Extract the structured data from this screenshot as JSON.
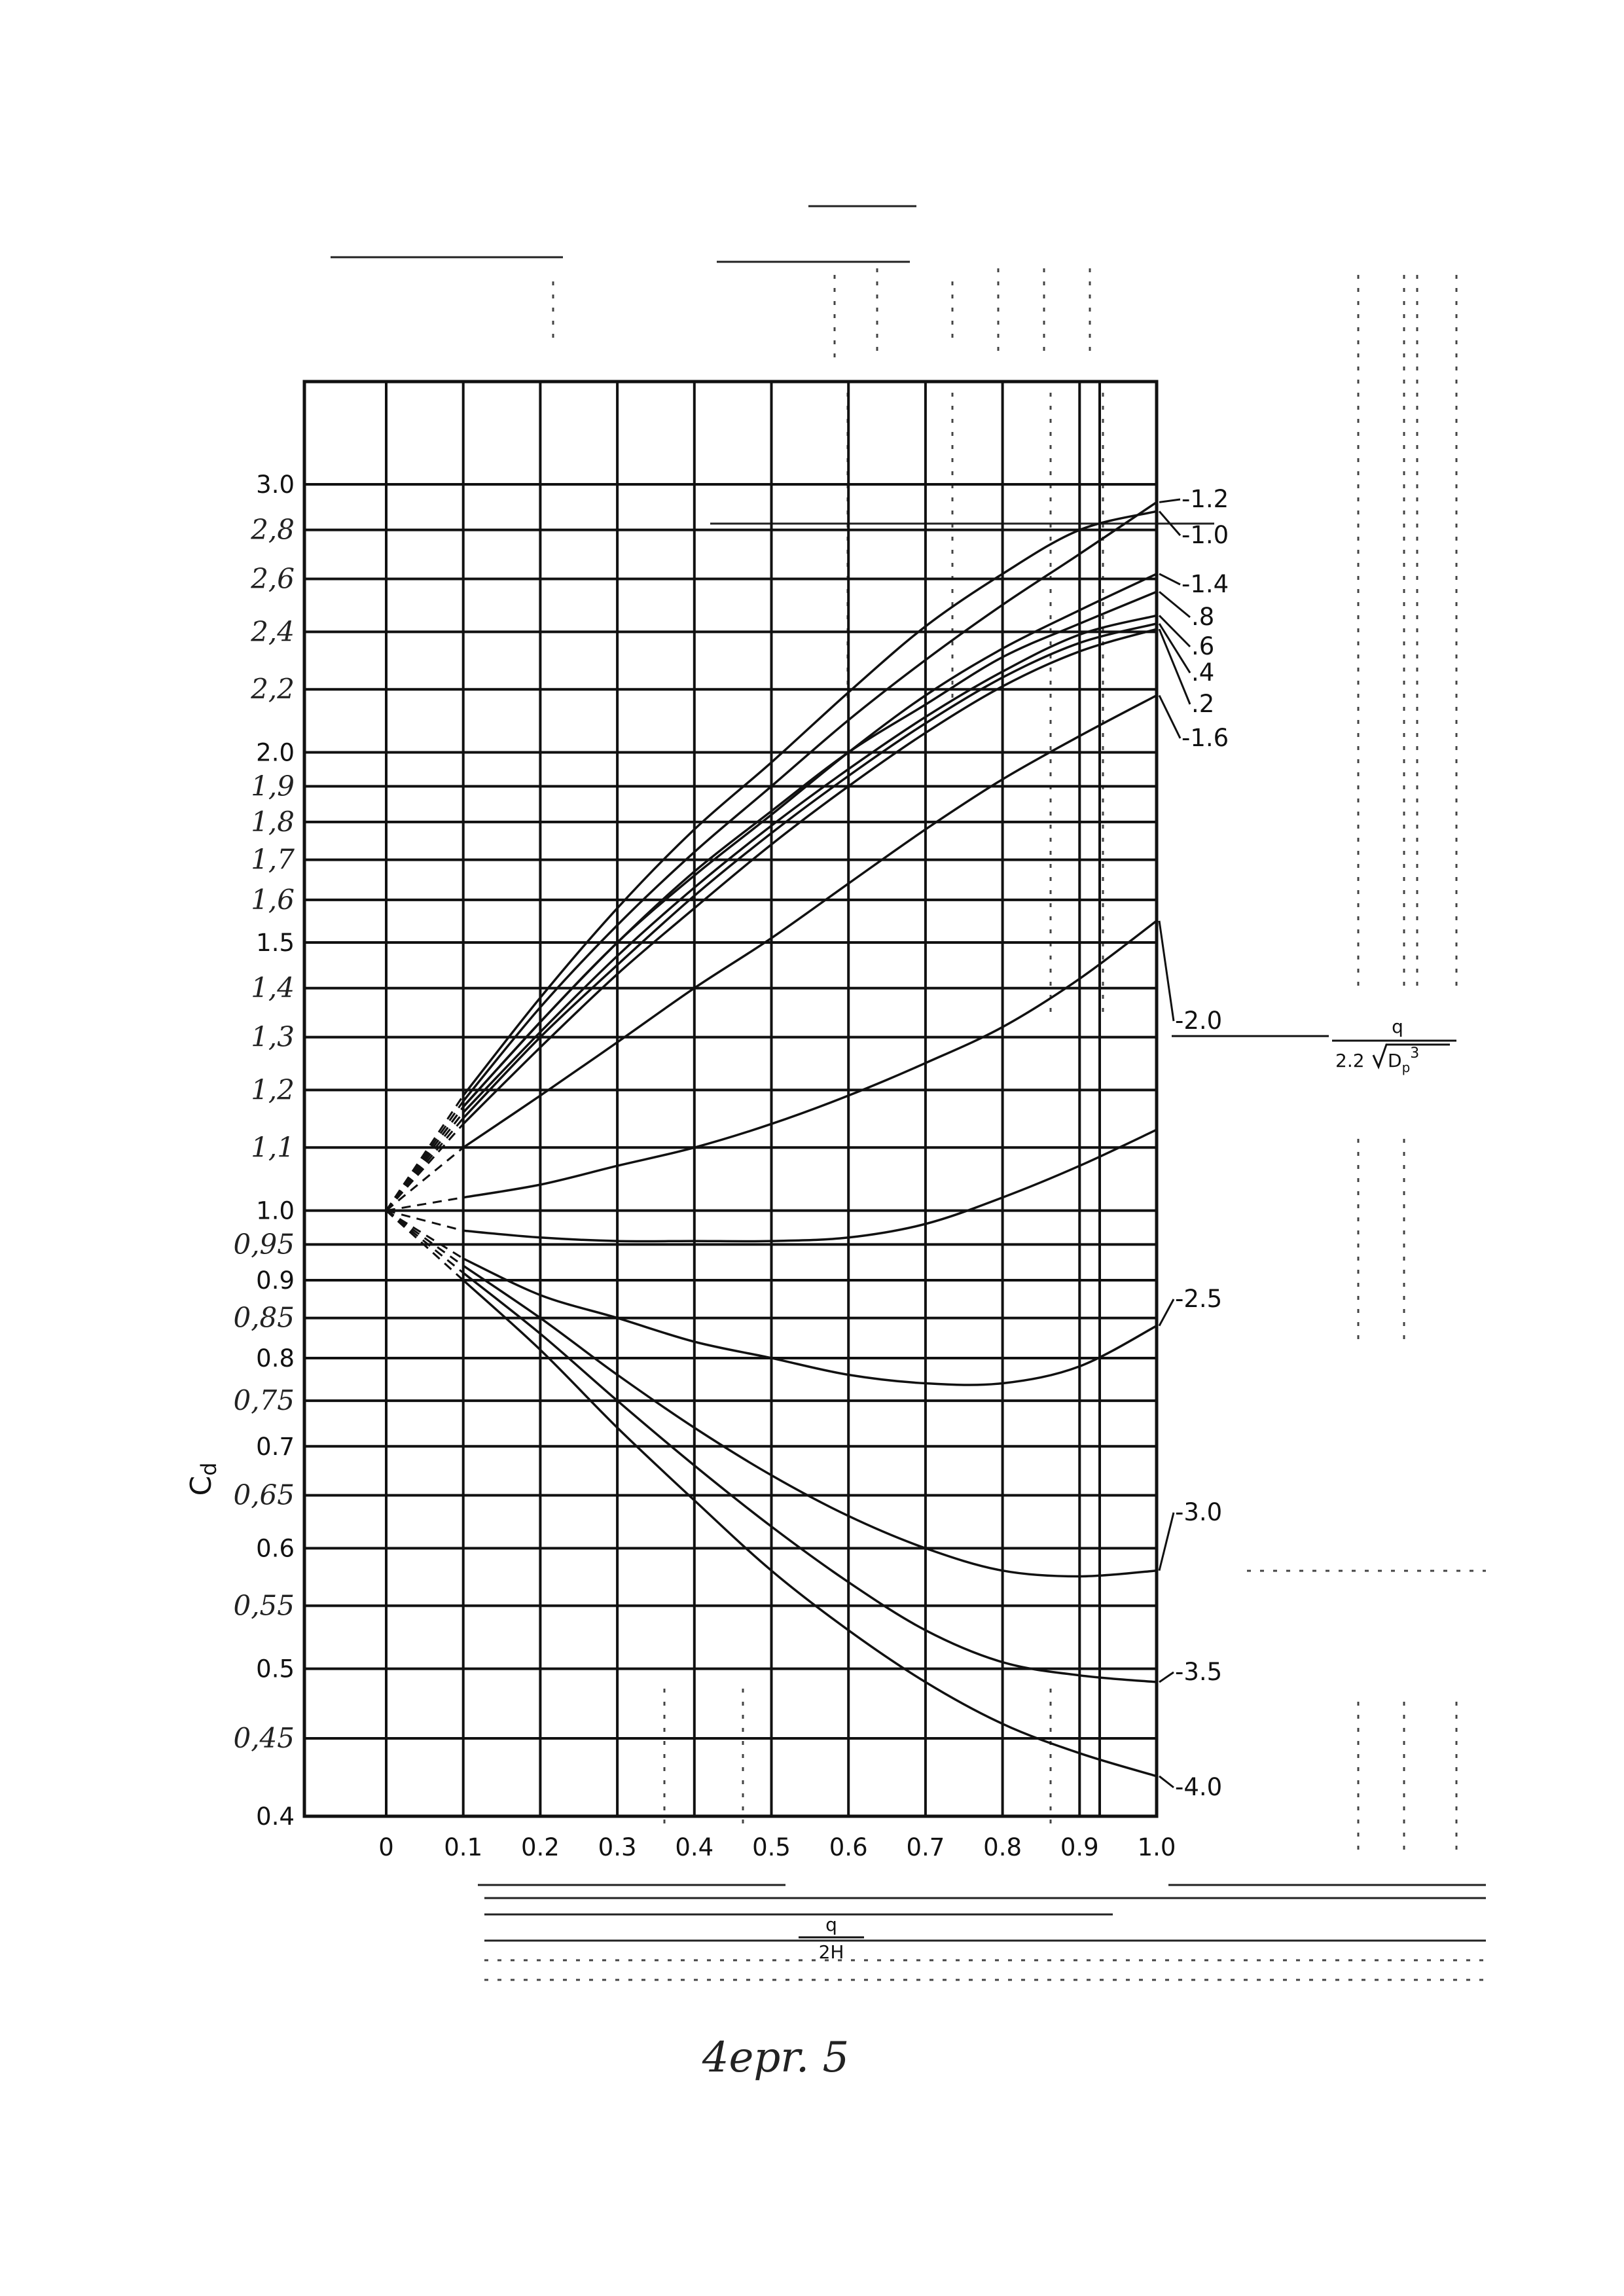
{
  "chart_data": {
    "type": "line",
    "ylabel": "C",
    "ylabel_sub": "d",
    "xlabel_num": "q",
    "xlabel_den": "2H",
    "x_ticks": [
      "0",
      "0.1",
      "0.2",
      "0.3",
      "0.4",
      "0.5",
      "0.6",
      "0.7",
      "0.8",
      "0.9",
      "1.0"
    ],
    "xlim": [
      0,
      1.0
    ],
    "y_scale": "log",
    "ylim": [
      0.4,
      3.2
    ],
    "y_ticks_printed": [
      {
        "value": 3.0,
        "label": "3.0"
      },
      {
        "value": 2.0,
        "label": "2.0"
      },
      {
        "value": 1.5,
        "label": "1.5"
      },
      {
        "value": 1.0,
        "label": "1.0"
      },
      {
        "value": 0.9,
        "label": "0.9"
      },
      {
        "value": 0.8,
        "label": "0.8"
      },
      {
        "value": 0.7,
        "label": "0.7"
      },
      {
        "value": 0.6,
        "label": "0.6"
      },
      {
        "value": 0.5,
        "label": "0.5"
      },
      {
        "value": 0.4,
        "label": "0.4"
      }
    ],
    "y_ticks_handwritten": [
      {
        "value": 2.8,
        "label": "2,8"
      },
      {
        "value": 2.6,
        "label": "2,6"
      },
      {
        "value": 2.4,
        "label": "2,4"
      },
      {
        "value": 2.2,
        "label": "2,2"
      },
      {
        "value": 1.9,
        "label": "1,9"
      },
      {
        "value": 1.8,
        "label": "1,8"
      },
      {
        "value": 1.7,
        "label": "1,7"
      },
      {
        "value": 1.6,
        "label": "1,6"
      },
      {
        "value": 1.4,
        "label": "1,4"
      },
      {
        "value": 1.3,
        "label": "1,3"
      },
      {
        "value": 1.2,
        "label": "1,2"
      },
      {
        "value": 1.1,
        "label": "1,1"
      },
      {
        "value": 0.95,
        "label": "0,95"
      },
      {
        "value": 0.85,
        "label": "0,85"
      },
      {
        "value": 0.75,
        "label": "0,75"
      },
      {
        "value": 0.65,
        "label": "0,65"
      },
      {
        "value": 0.55,
        "label": "0,55"
      },
      {
        "value": 0.45,
        "label": "0,45"
      }
    ],
    "grid": true,
    "series": [
      {
        "name": "-1.2",
        "x": [
          0,
          0.1,
          0.2,
          0.3,
          0.4,
          0.5,
          0.6,
          0.7,
          0.8,
          0.9,
          1.0
        ],
        "y": [
          1.0,
          1.18,
          1.36,
          1.54,
          1.72,
          1.9,
          2.1,
          2.3,
          2.5,
          2.7,
          2.92
        ]
      },
      {
        "name": "-1.0",
        "x": [
          0,
          0.1,
          0.2,
          0.3,
          0.4,
          0.5,
          0.6,
          0.7,
          0.8,
          0.9,
          1.0
        ],
        "y": [
          1.0,
          1.19,
          1.38,
          1.58,
          1.78,
          1.97,
          2.19,
          2.42,
          2.62,
          2.8,
          2.88
        ]
      },
      {
        "name": "-1.4",
        "x": [
          0,
          0.1,
          0.2,
          0.3,
          0.4,
          0.5,
          0.6,
          0.7,
          0.8,
          0.9,
          1.0
        ],
        "y": [
          1.0,
          1.17,
          1.33,
          1.5,
          1.66,
          1.82,
          2.0,
          2.18,
          2.34,
          2.48,
          2.62
        ]
      },
      {
        "name": ".8",
        "x": [
          0,
          0.1,
          0.2,
          0.3,
          0.4,
          0.5,
          0.6,
          0.7,
          0.8,
          0.9,
          1.0
        ],
        "y": [
          1.0,
          1.17,
          1.33,
          1.5,
          1.67,
          1.83,
          2.0,
          2.15,
          2.31,
          2.43,
          2.55
        ]
      },
      {
        "name": ".6",
        "x": [
          0,
          0.1,
          0.2,
          0.3,
          0.4,
          0.5,
          0.6,
          0.7,
          0.8,
          0.9,
          1.0
        ],
        "y": [
          1.0,
          1.16,
          1.31,
          1.47,
          1.63,
          1.79,
          1.95,
          2.11,
          2.26,
          2.39,
          2.46
        ]
      },
      {
        "name": ".4",
        "x": [
          0,
          0.1,
          0.2,
          0.3,
          0.4,
          0.5,
          0.6,
          0.7,
          0.8,
          0.9,
          1.0
        ],
        "y": [
          1.0,
          1.15,
          1.3,
          1.45,
          1.61,
          1.77,
          1.93,
          2.09,
          2.24,
          2.36,
          2.43
        ]
      },
      {
        "name": ".2",
        "x": [
          0,
          0.1,
          0.2,
          0.3,
          0.4,
          0.5,
          0.6,
          0.7,
          0.8,
          0.9,
          1.0
        ],
        "y": [
          1.0,
          1.14,
          1.28,
          1.43,
          1.58,
          1.74,
          1.9,
          2.06,
          2.21,
          2.33,
          2.41
        ]
      },
      {
        "name": "-1.6",
        "x": [
          0,
          0.1,
          0.2,
          0.3,
          0.4,
          0.5,
          0.6,
          0.7,
          0.8,
          0.9,
          1.0
        ],
        "y": [
          1.0,
          1.1,
          1.19,
          1.29,
          1.4,
          1.51,
          1.64,
          1.78,
          1.92,
          2.05,
          2.18
        ]
      },
      {
        "name": "-2.0",
        "x": [
          0,
          0.1,
          0.2,
          0.3,
          0.4,
          0.5,
          0.6,
          0.7,
          0.8,
          0.9,
          1.0
        ],
        "y": [
          1.0,
          1.02,
          1.04,
          1.07,
          1.1,
          1.14,
          1.19,
          1.25,
          1.32,
          1.42,
          1.55
        ]
      },
      {
        "name": "",
        "x": [
          0,
          0.1,
          0.2,
          0.3,
          0.4,
          0.5,
          0.6,
          0.7,
          0.8,
          0.9,
          1.0
        ],
        "y": [
          1.0,
          0.97,
          0.96,
          0.955,
          0.955,
          0.955,
          0.96,
          0.98,
          1.02,
          1.07,
          1.13
        ]
      },
      {
        "name": "-2.5",
        "x": [
          0,
          0.1,
          0.2,
          0.3,
          0.4,
          0.5,
          0.6,
          0.7,
          0.8,
          0.9,
          1.0
        ],
        "y": [
          1.0,
          0.93,
          0.88,
          0.85,
          0.82,
          0.8,
          0.78,
          0.77,
          0.77,
          0.79,
          0.84
        ]
      },
      {
        "name": "-3.0",
        "x": [
          0,
          0.1,
          0.2,
          0.3,
          0.4,
          0.5,
          0.6,
          0.7,
          0.8,
          0.9,
          1.0
        ],
        "y": [
          1.0,
          0.92,
          0.85,
          0.78,
          0.72,
          0.67,
          0.63,
          0.6,
          0.58,
          0.575,
          0.58
        ]
      },
      {
        "name": "-3.5",
        "x": [
          0,
          0.1,
          0.2,
          0.3,
          0.4,
          0.5,
          0.6,
          0.7,
          0.8,
          0.9,
          1.0
        ],
        "y": [
          1.0,
          0.91,
          0.83,
          0.75,
          0.68,
          0.62,
          0.57,
          0.53,
          0.505,
          0.495,
          0.49
        ]
      },
      {
        "name": "-4.0",
        "x": [
          0,
          0.1,
          0.2,
          0.3,
          0.4,
          0.5,
          0.6,
          0.7,
          0.8,
          0.9,
          1.0
        ],
        "y": [
          1.0,
          0.9,
          0.81,
          0.72,
          0.645,
          0.58,
          0.53,
          0.49,
          0.46,
          0.44,
          0.425
        ]
      }
    ]
  },
  "right_scale": {
    "num": "q",
    "den_coef": "2.2",
    "den_root": "D",
    "den_root_sub": "p",
    "den_root_sup": "3"
  },
  "caption": "4epr. 5"
}
